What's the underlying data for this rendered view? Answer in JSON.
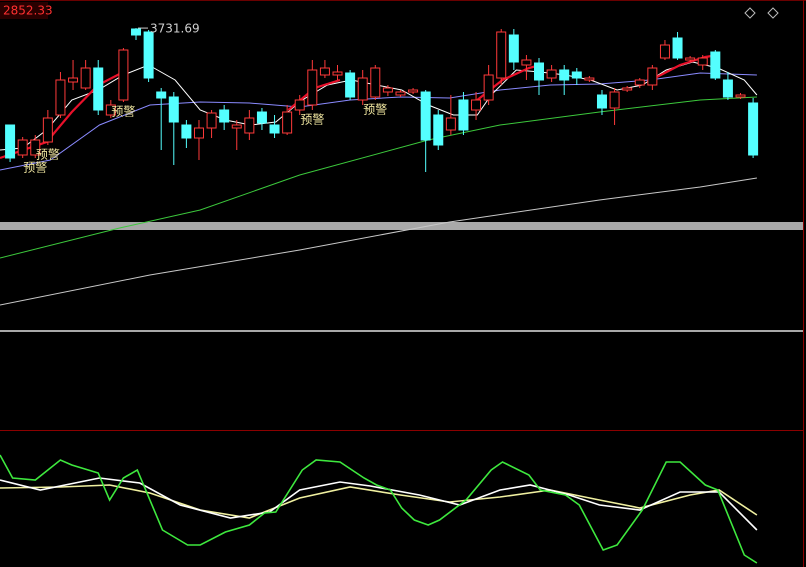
{
  "header": {
    "value_label": "2852.33"
  },
  "chart_data": [
    {
      "type": "candlestick",
      "up_color": "#ff3a3a",
      "down_color": "#54ffff",
      "ylim": [
        2524,
        3844
      ],
      "xlim": [
        -0.8,
        63.2
      ],
      "open": [
        3344,
        3224,
        3224,
        3276,
        3384,
        3516,
        3492,
        3572,
        3384,
        3444,
        3728,
        3716,
        3476,
        3456,
        3344,
        3292,
        3332,
        3404,
        3332,
        3312,
        3396,
        3344,
        3312,
        3404,
        3424,
        3544,
        3544,
        3552,
        3444,
        3456,
        3476,
        3464,
        3476,
        3476,
        3384,
        3324,
        3444,
        3404,
        3444,
        3532,
        3704,
        3584,
        3592,
        3532,
        3564,
        3556,
        3524,
        3464,
        3412,
        3484,
        3504,
        3504,
        3612,
        3692,
        3604,
        3584,
        3636,
        3524,
        3456,
        3432
      ],
      "high": [
        3344,
        3296,
        3304,
        3404,
        3556,
        3604,
        3604,
        3604,
        3444,
        3652,
        3731.69,
        3724,
        3492,
        3476,
        3364,
        3364,
        3404,
        3424,
        3364,
        3404,
        3412,
        3384,
        3424,
        3464,
        3604,
        3604,
        3584,
        3564,
        3564,
        3584,
        3504,
        3484,
        3492,
        3484,
        3404,
        3464,
        3476,
        3476,
        3584,
        3728,
        3728,
        3624,
        3612,
        3584,
        3584,
        3572,
        3540,
        3484,
        3492,
        3500,
        3532,
        3584,
        3684,
        3716,
        3620,
        3624,
        3644,
        3556,
        3472,
        3452
      ],
      "low": [
        3196,
        3212,
        3212,
        3264,
        3372,
        3484,
        3484,
        3384,
        3372,
        3436,
        3684,
        3516,
        3244,
        3184,
        3252,
        3204,
        3292,
        3324,
        3244,
        3284,
        3324,
        3292,
        3304,
        3384,
        3404,
        3532,
        3524,
        3444,
        3424,
        3444,
        3460,
        3456,
        3468,
        3156,
        3244,
        3304,
        3304,
        3364,
        3424,
        3504,
        3564,
        3524,
        3464,
        3516,
        3464,
        3504,
        3516,
        3384,
        3344,
        3476,
        3492,
        3484,
        3604,
        3604,
        3596,
        3564,
        3524,
        3444,
        3448,
        3212
      ],
      "close": [
        3212,
        3284,
        3284,
        3372,
        3524,
        3532,
        3572,
        3404,
        3424,
        3644,
        3704,
        3532,
        3452,
        3356,
        3292,
        3332,
        3392,
        3356,
        3344,
        3372,
        3352,
        3312,
        3396,
        3444,
        3564,
        3572,
        3556,
        3456,
        3532,
        3572,
        3492,
        3476,
        3484,
        3284,
        3264,
        3372,
        3324,
        3444,
        3544,
        3716,
        3596,
        3604,
        3524,
        3564,
        3524,
        3532,
        3532,
        3412,
        3476,
        3492,
        3524,
        3572,
        3664,
        3612,
        3612,
        3612,
        3532,
        3456,
        3464,
        3224
      ],
      "annotations": [
        {
          "value": 3731.69,
          "label": "3731.69"
        }
      ],
      "signals": [
        {
          "index": 2,
          "label": "预警"
        },
        {
          "index": 3,
          "label": "预警"
        },
        {
          "index": 9,
          "label": "预警"
        },
        {
          "index": 24,
          "label": "预警"
        },
        {
          "index": 29,
          "label": "预警"
        }
      ],
      "lines": [
        {
          "color": "#8a8aff",
          "x": [
            -0.8,
            3.2,
            7.1,
            11.1,
            15.1,
            19,
            23,
            27,
            31,
            34.9,
            38.9,
            42.9,
            46.8,
            50.8,
            54.8,
            59.3
          ],
          "values": [
            3164,
            3204,
            3344,
            3424,
            3436,
            3432,
            3416,
            3444,
            3456,
            3452,
            3484,
            3504,
            3508,
            3524,
            3552,
            3544
          ]
        },
        {
          "color": "#ffffff",
          "x": [
            -0.8,
            1,
            2.9,
            4.9,
            7,
            9,
            11,
            13.1,
            15.1,
            17.1,
            19.1,
            21.1,
            23.2,
            25.2,
            27.1,
            29.1,
            31.1,
            33.2,
            35.2,
            37.1,
            38.2,
            40.2,
            42.1,
            44.1,
            46.1,
            48.2,
            50.2,
            52.1,
            54.2,
            56.2,
            58.3,
            59.3
          ],
          "values": [
            3244,
            3252,
            3324,
            3444,
            3484,
            3544,
            3584,
            3524,
            3404,
            3364,
            3344,
            3356,
            3444,
            3504,
            3524,
            3504,
            3484,
            3424,
            3384,
            3384,
            3464,
            3564,
            3556,
            3544,
            3524,
            3484,
            3504,
            3564,
            3596,
            3572,
            3524,
            3464
          ]
        },
        {
          "color": "#e8102a",
          "x": [
            -0.8,
            2.9,
            4.9,
            7,
            9,
            15,
            22.1,
            24.2,
            26.2,
            30,
            37.1,
            39.1,
            41.2,
            42.1,
            46,
            51.2,
            53.2,
            55.2,
            56.2
          ],
          "values": [
            3212,
            3276,
            3396,
            3504,
            3556,
            null,
            3404,
            3492,
            3524,
            null,
            3444,
            3524,
            3572,
            3584,
            null,
            3532,
            3584,
            3616,
            3624
          ]
        },
        {
          "color": "#3cc83c",
          "x": [
            -0.8,
            8.7,
            15.1,
            23,
            33.2,
            38.9,
            46.8,
            54.8,
            59.3
          ],
          "values": [
            2812,
            2932,
            3004,
            3144,
            3284,
            3344,
            3396,
            3444,
            3456
          ]
        },
        {
          "color": "#c8c8c8",
          "x": [
            -0.8,
            11.1,
            23,
            34.9,
            46.8,
            54.8,
            59.3
          ],
          "values": [
            2624,
            2744,
            2844,
            2956,
            3044,
            3096,
            3132
          ]
        }
      ]
    },
    {
      "type": "line",
      "ylim": [
        0,
        137
      ],
      "xlim": [
        -0.8,
        63.2
      ],
      "series": [
        {
          "color": "#f0f0a0",
          "x": [
            -0.8,
            4,
            7.9,
            11.1,
            15.1,
            19,
            23,
            27,
            31,
            34.9,
            38.9,
            42.9,
            46.8,
            50,
            54,
            56.3,
            59.3
          ],
          "values": [
            79,
            80,
            82,
            74,
            57,
            49,
            69,
            80,
            72,
            65,
            70,
            77,
            67,
            59,
            72,
            77,
            52
          ]
        },
        {
          "color": "#ffffff",
          "x": [
            -0.8,
            2.4,
            7.1,
            10.3,
            13.5,
            17.5,
            20.6,
            23,
            26.2,
            28.6,
            32.5,
            35.7,
            38.9,
            41.3,
            44.4,
            46.8,
            50,
            53.2,
            56.3,
            59.3
          ],
          "values": [
            87,
            77,
            89,
            84,
            62,
            49,
            55,
            77,
            85,
            81,
            72,
            62,
            77,
            82,
            72,
            62,
            57,
            75,
            75,
            37
          ]
        },
        {
          "color": "#3ee83e",
          "x": [
            -0.8,
            0.2,
            2,
            4,
            4.9,
            7,
            7.9,
            9,
            10.1,
            12.1,
            14.1,
            15.1,
            17.1,
            19,
            20.2,
            21.1,
            23.2,
            24.3,
            26.2,
            28.1,
            29.1,
            30.2,
            31.1,
            32.1,
            33.2,
            34.1,
            36.2,
            38.2,
            39.1,
            41.2,
            42.1,
            44.1,
            45.2,
            47.1,
            48.2,
            50.2,
            52.1,
            53.2,
            55.2,
            56.2,
            58.3,
            59.3
          ],
          "values": [
            112,
            89,
            87,
            107,
            102,
            94,
            67,
            89,
            97,
            37,
            22,
            22,
            35,
            42,
            54,
            55,
            97,
            107,
            105,
            89,
            82,
            77,
            59,
            47,
            42,
            47,
            67,
            97,
            105,
            92,
            77,
            72,
            62,
            17,
            22,
            57,
            105,
            105,
            82,
            77,
            12,
            4
          ]
        }
      ]
    }
  ]
}
